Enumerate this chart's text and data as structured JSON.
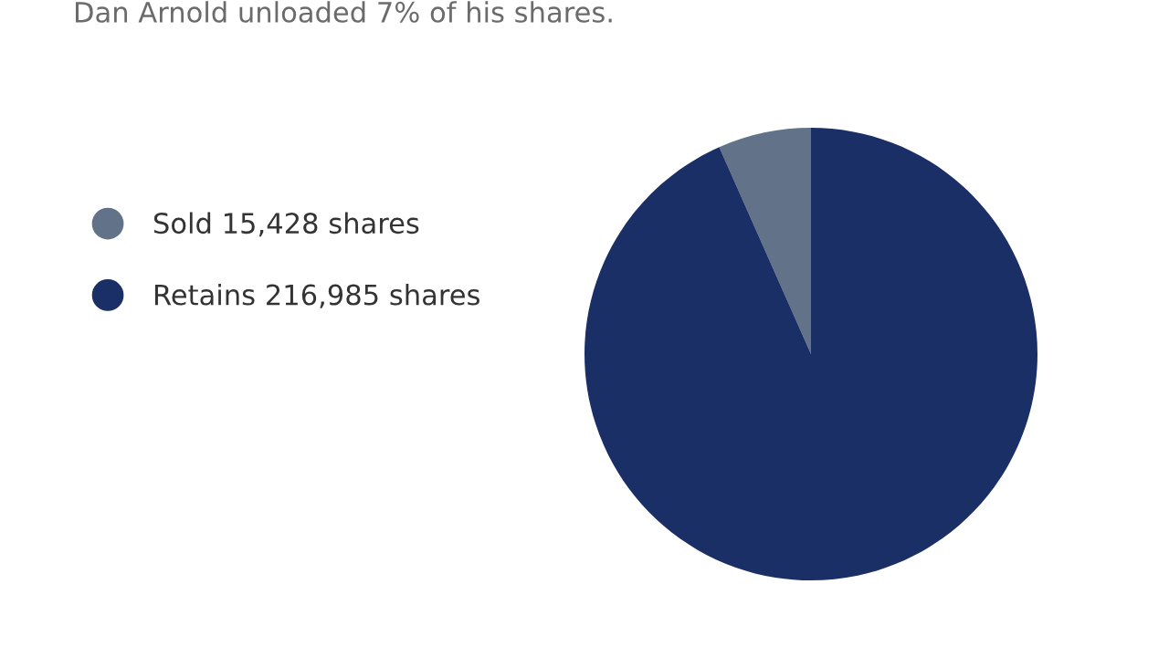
{
  "chart_data": {
    "type": "pie",
    "title": "Dan Arnold unloaded 7% of his shares.",
    "categories": [
      "Sold 15,428 shares",
      "Retains 216,985 shares"
    ],
    "values": [
      15428,
      216985
    ],
    "colors": [
      "#627289",
      "#1a2f66"
    ],
    "legend": "left"
  }
}
